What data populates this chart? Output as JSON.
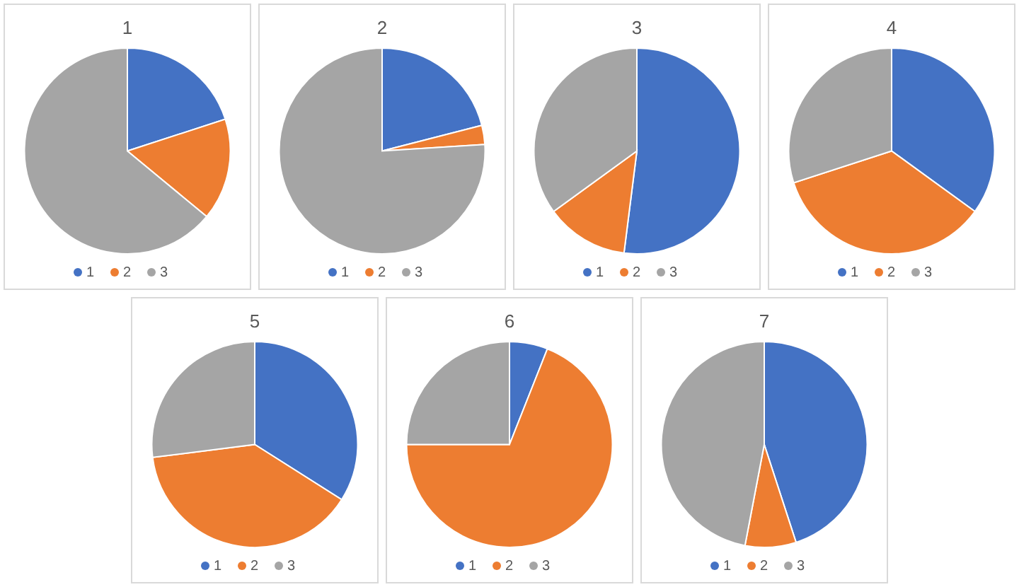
{
  "chart_data": [
    {
      "type": "pie",
      "title": "1",
      "categories": [
        "1",
        "2",
        "3"
      ],
      "values": [
        20,
        16,
        64
      ],
      "colors": [
        "#4472c4",
        "#ed7d31",
        "#a5a5a5"
      ],
      "legend": "bottom"
    },
    {
      "type": "pie",
      "title": "2",
      "categories": [
        "1",
        "2",
        "3"
      ],
      "values": [
        21,
        3,
        76
      ],
      "colors": [
        "#4472c4",
        "#ed7d31",
        "#a5a5a5"
      ],
      "legend": "bottom"
    },
    {
      "type": "pie",
      "title": "3",
      "categories": [
        "1",
        "2",
        "3"
      ],
      "values": [
        52,
        13,
        35
      ],
      "colors": [
        "#4472c4",
        "#ed7d31",
        "#a5a5a5"
      ],
      "legend": "bottom"
    },
    {
      "type": "pie",
      "title": "4",
      "categories": [
        "1",
        "2",
        "3"
      ],
      "values": [
        35,
        35,
        30
      ],
      "colors": [
        "#4472c4",
        "#ed7d31",
        "#a5a5a5"
      ],
      "legend": "bottom"
    },
    {
      "type": "pie",
      "title": "5",
      "categories": [
        "1",
        "2",
        "3"
      ],
      "values": [
        34,
        39,
        27
      ],
      "colors": [
        "#4472c4",
        "#ed7d31",
        "#a5a5a5"
      ],
      "legend": "bottom"
    },
    {
      "type": "pie",
      "title": "6",
      "categories": [
        "1",
        "2",
        "3"
      ],
      "values": [
        6,
        69,
        25
      ],
      "colors": [
        "#4472c4",
        "#ed7d31",
        "#a5a5a5"
      ],
      "legend": "bottom"
    },
    {
      "type": "pie",
      "title": "7",
      "categories": [
        "1",
        "2",
        "3"
      ],
      "values": [
        45,
        8,
        47
      ],
      "colors": [
        "#4472c4",
        "#ed7d31",
        "#a5a5a5"
      ],
      "legend": "bottom"
    }
  ]
}
